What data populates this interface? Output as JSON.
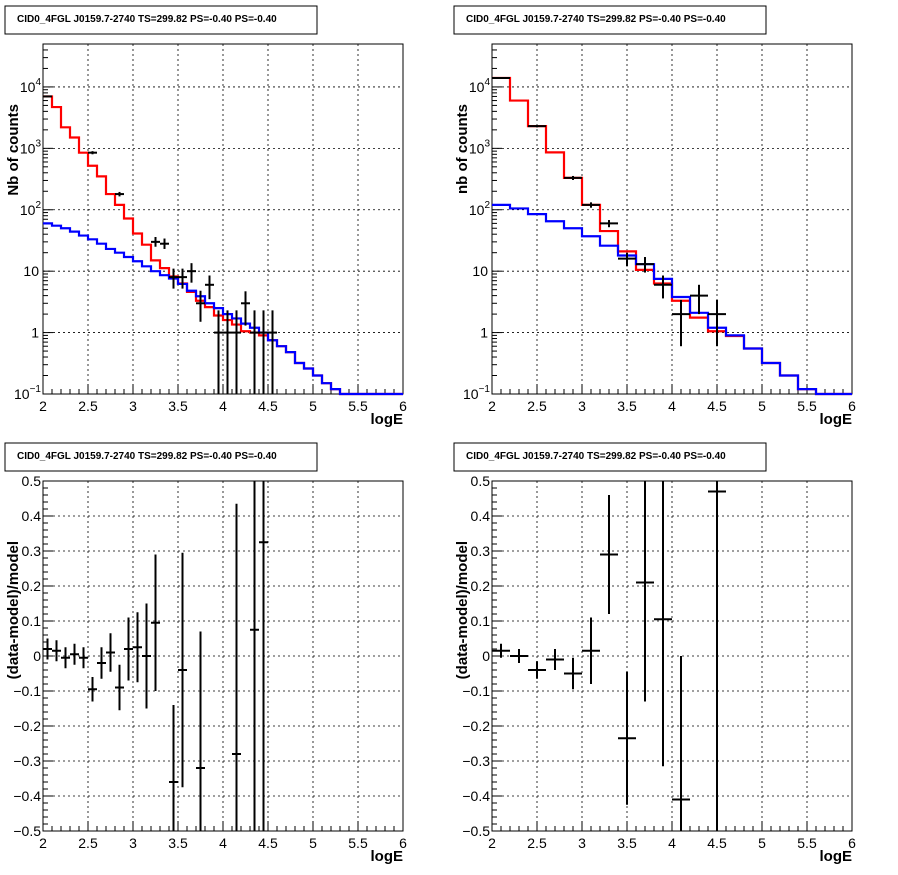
{
  "chart_data": [
    {
      "type": "step-histogram-with-errorbars",
      "title": "CID0_4FGL J0159.7-2740 TS=299.82 PS=-0.40 PS=-0.40",
      "xlabel": "logE",
      "ylabel": "Nb of counts",
      "xlim": [
        2,
        6
      ],
      "ylim": [
        0.1,
        50000
      ],
      "yscale": "log",
      "grid": true,
      "x_ticks": [
        "2",
        "2.5",
        "3",
        "3.5",
        "4",
        "4.5",
        "5",
        "5.5",
        "6"
      ],
      "y_ticks": [
        {
          "v": 0.1,
          "label": "10",
          "sup": "−1"
        },
        {
          "v": 1,
          "label": "1",
          "sup": ""
        },
        {
          "v": 10,
          "label": "10",
          "sup": ""
        },
        {
          "v": 100,
          "label": "10",
          "sup": "2"
        },
        {
          "v": 1000,
          "label": "10",
          "sup": "3"
        },
        {
          "v": 10000,
          "label": "10",
          "sup": "4"
        }
      ],
      "bin_edges": [
        2.0,
        2.1,
        2.2,
        2.3,
        2.4,
        2.5,
        2.6,
        2.7,
        2.8,
        2.9,
        3.0,
        3.1,
        3.2,
        3.3,
        3.4,
        3.5,
        3.6,
        3.7,
        3.8,
        3.9,
        4.0,
        4.1,
        4.2,
        4.3,
        4.4,
        4.5,
        4.6,
        4.7,
        4.8,
        4.9,
        5.0,
        5.1,
        5.2,
        5.3,
        5.4,
        5.5,
        5.6,
        5.7,
        5.8,
        5.9,
        6.0
      ],
      "series": [
        {
          "color": "#ff0000",
          "kind": "step",
          "values": [
            7000,
            4700,
            2200,
            1500,
            850,
            520,
            350,
            180,
            120,
            72,
            41,
            27,
            15,
            11.2,
            8.2,
            6.3,
            4.6,
            3.3,
            2.6,
            1.9,
            1.6,
            1.35,
            1.05,
            1.0,
            0.9,
            0.75,
            0.6,
            0.48,
            0.32,
            0.26,
            0.2,
            0.15,
            0.12,
            0.1,
            0.1,
            0.1,
            0.1,
            0.1,
            0.1,
            0.1
          ]
        },
        {
          "color": "#0000ff",
          "kind": "step",
          "values": [
            60,
            55,
            50,
            44,
            38,
            33,
            28,
            23,
            20,
            17,
            14.5,
            12,
            10,
            8.6,
            7.6,
            6.2,
            4.8,
            3.9,
            3.0,
            2.5,
            2.0,
            1.7,
            1.4,
            1.2,
            1.0,
            0.75,
            0.6,
            0.48,
            0.32,
            0.26,
            0.2,
            0.15,
            0.12,
            0.1,
            0.1,
            0.1,
            0.1,
            0.1,
            0.1,
            0.1
          ]
        },
        {
          "color": "#000000",
          "kind": "errorbar",
          "points": [
            {
              "x": 2.05,
              "y": 7000,
              "ylo": 6800,
              "yhi": 7200
            },
            {
              "x": 2.55,
              "y": 850,
              "ylo": 800,
              "yhi": 900
            },
            {
              "x": 2.85,
              "y": 180,
              "ylo": 165,
              "yhi": 195
            },
            {
              "x": 3.25,
              "y": 30,
              "ylo": 25,
              "yhi": 36
            },
            {
              "x": 3.35,
              "y": 28,
              "ylo": 23,
              "yhi": 34
            },
            {
              "x": 3.45,
              "y": 8,
              "ylo": 5.2,
              "yhi": 11
            },
            {
              "x": 3.55,
              "y": 8,
              "ylo": 5.2,
              "yhi": 11
            },
            {
              "x": 3.65,
              "y": 10,
              "ylo": 6.5,
              "yhi": 13.5
            },
            {
              "x": 3.75,
              "y": 3,
              "ylo": 1.5,
              "yhi": 4.8
            },
            {
              "x": 3.85,
              "y": 6,
              "ylo": 3.5,
              "yhi": 8.5
            },
            {
              "x": 3.95,
              "y": 1,
              "ylo": 0.1,
              "yhi": 2.3
            },
            {
              "x": 4.05,
              "y": 1,
              "ylo": 0.1,
              "yhi": 2.3
            },
            {
              "x": 4.15,
              "y": 1,
              "ylo": 0.1,
              "yhi": 2.3
            },
            {
              "x": 4.25,
              "y": 3,
              "ylo": 1.3,
              "yhi": 4.7
            },
            {
              "x": 4.35,
              "y": 1,
              "ylo": 0.1,
              "yhi": 2.3
            },
            {
              "x": 4.45,
              "y": 1,
              "ylo": 0.1,
              "yhi": 2.3
            },
            {
              "x": 4.55,
              "y": 1,
              "ylo": 0.1,
              "yhi": 2.3
            }
          ]
        }
      ]
    },
    {
      "type": "step-histogram-with-errorbars",
      "title": "CID0_4FGL J0159.7-2740 TS=299.82 PS=-0.40 PS=-0.40",
      "xlabel": "logE",
      "ylabel": "nb of counts",
      "xlim": [
        2,
        6
      ],
      "ylim": [
        0.1,
        50000
      ],
      "yscale": "log",
      "grid": true,
      "x_ticks": [
        "2",
        "2.5",
        "3",
        "3.5",
        "4",
        "4.5",
        "5",
        "5.5",
        "6"
      ],
      "y_ticks": [
        {
          "v": 0.1,
          "label": "10",
          "sup": "−1"
        },
        {
          "v": 1,
          "label": "1",
          "sup": ""
        },
        {
          "v": 10,
          "label": "10",
          "sup": ""
        },
        {
          "v": 100,
          "label": "10",
          "sup": "2"
        },
        {
          "v": 1000,
          "label": "10",
          "sup": "3"
        },
        {
          "v": 10000,
          "label": "10",
          "sup": "4"
        }
      ],
      "bin_edges": [
        2.0,
        2.2,
        2.4,
        2.6,
        2.8,
        3.0,
        3.2,
        3.4,
        3.6,
        3.8,
        4.0,
        4.2,
        4.4,
        4.6,
        4.8,
        5.0,
        5.2,
        5.4,
        5.6,
        5.8,
        6.0
      ],
      "series": [
        {
          "color": "#ff0000",
          "kind": "step",
          "values": [
            14000,
            6000,
            2300,
            860,
            330,
            120,
            45,
            21,
            10.5,
            6.3,
            3.3,
            1.75,
            1.05,
            0.88,
            0.55,
            0.32,
            0.2,
            0.12,
            0.1,
            0.1
          ]
        },
        {
          "color": "#0000ff",
          "kind": "step",
          "values": [
            120,
            105,
            85,
            65,
            50,
            37,
            26,
            18,
            13,
            7.5,
            3.8,
            2.1,
            1.2,
            0.9,
            0.55,
            0.32,
            0.2,
            0.12,
            0.1,
            0.1
          ]
        },
        {
          "color": "#000000",
          "kind": "errorbar",
          "points": [
            {
              "x": 2.1,
              "y": 14000,
              "ylo": 13700,
              "yhi": 14300
            },
            {
              "x": 2.5,
              "y": 2300,
              "ylo": 2200,
              "yhi": 2400
            },
            {
              "x": 2.9,
              "y": 330,
              "ylo": 305,
              "yhi": 355
            },
            {
              "x": 3.1,
              "y": 120,
              "ylo": 108,
              "yhi": 132
            },
            {
              "x": 3.3,
              "y": 60,
              "ylo": 52,
              "yhi": 68
            },
            {
              "x": 3.5,
              "y": 16,
              "ylo": 12,
              "yhi": 20
            },
            {
              "x": 3.7,
              "y": 13,
              "ylo": 9.5,
              "yhi": 17
            },
            {
              "x": 3.9,
              "y": 6,
              "ylo": 3.6,
              "yhi": 8.5
            },
            {
              "x": 4.1,
              "y": 2,
              "ylo": 0.6,
              "yhi": 3.4
            },
            {
              "x": 4.3,
              "y": 4,
              "ylo": 2,
              "yhi": 6
            },
            {
              "x": 4.5,
              "y": 2,
              "ylo": 0.6,
              "yhi": 3.4
            }
          ]
        }
      ]
    },
    {
      "type": "errorbar",
      "title": "CID0_4FGL J0159.7-2740 TS=299.82 PS=-0.40 PS=-0.40",
      "xlabel": "logE",
      "ylabel": "(data-model)/model",
      "xlim": [
        2,
        6
      ],
      "ylim": [
        -0.5,
        0.5
      ],
      "grid": true,
      "x_ticks": [
        "2",
        "2.5",
        "3",
        "3.5",
        "4",
        "4.5",
        "5",
        "5.5",
        "6"
      ],
      "y_ticks": [
        "−0.5",
        "−0.4",
        "−0.3",
        "−0.2",
        "−0.1",
        "0",
        "0.1",
        "0.2",
        "0.3",
        "0.4",
        "0.5"
      ],
      "series": [
        {
          "color": "#000000",
          "points": [
            {
              "x": 2.05,
              "y": 0.02,
              "err": 0.03,
              "xerr": 0.05
            },
            {
              "x": 2.15,
              "y": 0.015,
              "err": 0.03,
              "xerr": 0.05
            },
            {
              "x": 2.25,
              "y": -0.005,
              "err": 0.03,
              "xerr": 0.05
            },
            {
              "x": 2.35,
              "y": 0.005,
              "err": 0.03,
              "xerr": 0.05
            },
            {
              "x": 2.45,
              "y": -0.005,
              "err": 0.03,
              "xerr": 0.05
            },
            {
              "x": 2.55,
              "y": -0.095,
              "err": 0.035,
              "xerr": 0.05
            },
            {
              "x": 2.65,
              "y": -0.02,
              "err": 0.045,
              "xerr": 0.05
            },
            {
              "x": 2.75,
              "y": 0.01,
              "err": 0.055,
              "xerr": 0.05
            },
            {
              "x": 2.85,
              "y": -0.09,
              "err": 0.065,
              "xerr": 0.05
            },
            {
              "x": 2.95,
              "y": 0.02,
              "err": 0.09,
              "xerr": 0.05
            },
            {
              "x": 3.05,
              "y": 0.025,
              "err": 0.1,
              "xerr": 0.05
            },
            {
              "x": 3.15,
              "y": 0.0,
              "err": 0.15,
              "xerr": 0.05
            },
            {
              "x": 3.25,
              "y": 0.095,
              "err": 0.195,
              "xerr": 0.05
            },
            {
              "x": 3.45,
              "y": -0.36,
              "err": 0.22,
              "xerr": 0.05
            },
            {
              "x": 3.55,
              "y": -0.04,
              "err": 0.335,
              "xerr": 0.05
            },
            {
              "x": 3.75,
              "y": -0.32,
              "err": 0.39,
              "xerr": 0.05
            },
            {
              "x": 4.15,
              "y": -0.28,
              "err": 0.715,
              "xerr": 0.05
            },
            {
              "x": 4.35,
              "y": 0.075,
              "err": 0.99,
              "xerr": 0.05
            },
            {
              "x": 4.45,
              "y": 0.325,
              "err": 1.1,
              "xerr": 0.05
            }
          ]
        }
      ]
    },
    {
      "type": "errorbar",
      "title": "CID0_4FGL J0159.7-2740 TS=299.82 PS=-0.40 PS=-0.40",
      "xlabel": "logE",
      "ylabel": "(data-model)/model",
      "xlim": [
        2,
        6
      ],
      "ylim": [
        -0.5,
        0.5
      ],
      "grid": true,
      "x_ticks": [
        "2",
        "2.5",
        "3",
        "3.5",
        "4",
        "4.5",
        "5",
        "5.5",
        "6"
      ],
      "y_ticks": [
        "−0.5",
        "−0.4",
        "−0.3",
        "−0.2",
        "−0.1",
        "0",
        "0.1",
        "0.2",
        "0.3",
        "0.4",
        "0.5"
      ],
      "series": [
        {
          "color": "#000000",
          "points": [
            {
              "x": 2.1,
              "y": 0.015,
              "err": 0.02,
              "xerr": 0.1
            },
            {
              "x": 2.3,
              "y": 0.0,
              "err": 0.02,
              "xerr": 0.1
            },
            {
              "x": 2.5,
              "y": -0.04,
              "err": 0.025,
              "xerr": 0.1
            },
            {
              "x": 2.7,
              "y": -0.01,
              "err": 0.03,
              "xerr": 0.1
            },
            {
              "x": 2.9,
              "y": -0.05,
              "err": 0.045,
              "xerr": 0.1
            },
            {
              "x": 3.1,
              "y": 0.015,
              "err": 0.095,
              "xerr": 0.1
            },
            {
              "x": 3.3,
              "y": 0.29,
              "err": 0.17,
              "xerr": 0.1
            },
            {
              "x": 3.5,
              "y": -0.235,
              "err": 0.19,
              "xerr": 0.1
            },
            {
              "x": 3.7,
              "y": 0.21,
              "err": 0.34,
              "xerr": 0.1
            },
            {
              "x": 3.9,
              "y": 0.105,
              "err": 0.42,
              "xerr": 0.1
            },
            {
              "x": 4.1,
              "y": -0.41,
              "err": 0.41,
              "xerr": 0.1
            },
            {
              "x": 4.5,
              "y": 0.47,
              "err": 1.2,
              "xerr": 0.1
            }
          ]
        }
      ]
    }
  ]
}
